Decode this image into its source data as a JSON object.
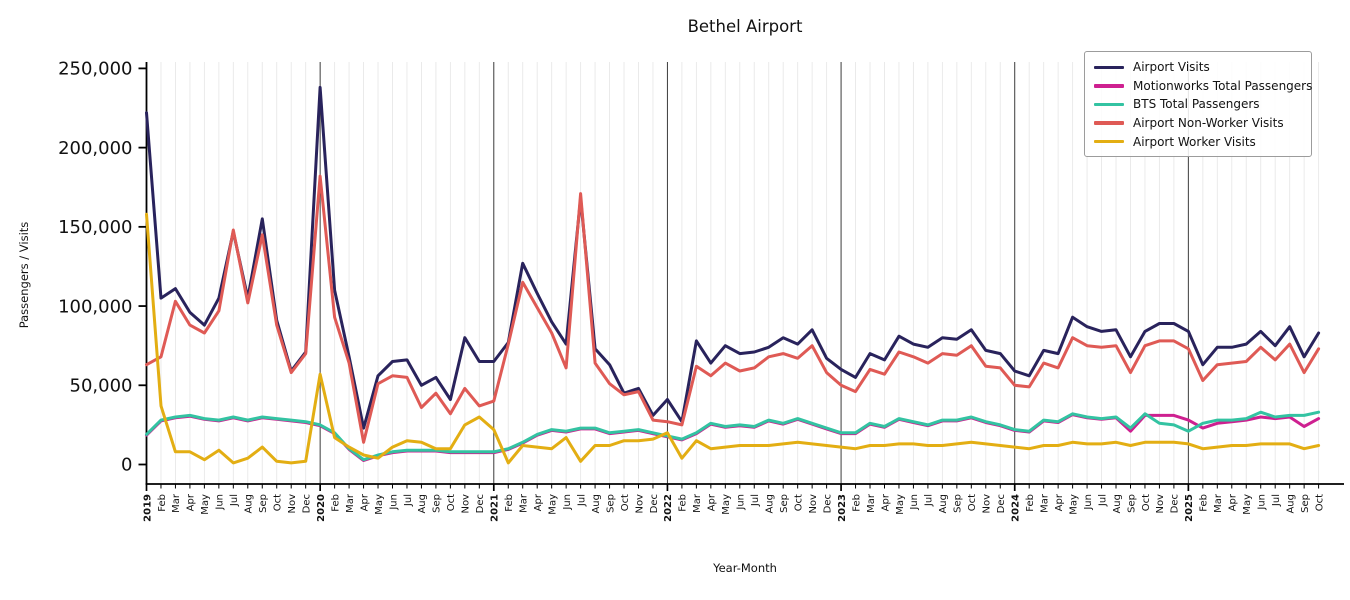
{
  "chart_data": {
    "type": "line",
    "title": "Bethel Airport",
    "xlabel": "Year-Month",
    "ylabel": "Passengers / Visits",
    "ylim": [
      -12000,
      254000
    ],
    "legend_position": "upper right",
    "grid": {
      "month_line": "#e8e8e8",
      "year_line": "#3b3b3b"
    },
    "y_ticks": [
      {
        "value": 0,
        "label": "0"
      },
      {
        "value": 50000,
        "label": "50,000"
      },
      {
        "value": 100000,
        "label": "100,000"
      },
      {
        "value": 150000,
        "label": "150,000"
      },
      {
        "value": 200000,
        "label": "200,000"
      },
      {
        "value": 250000,
        "label": "250,000"
      }
    ],
    "x": [
      "2019-01",
      "2019-02",
      "2019-03",
      "2019-04",
      "2019-05",
      "2019-06",
      "2019-07",
      "2019-08",
      "2019-09",
      "2019-10",
      "2019-11",
      "2019-12",
      "2020-01",
      "2020-02",
      "2020-03",
      "2020-04",
      "2020-05",
      "2020-06",
      "2020-07",
      "2020-08",
      "2020-09",
      "2020-10",
      "2020-11",
      "2020-12",
      "2021-01",
      "2021-02",
      "2021-03",
      "2021-04",
      "2021-05",
      "2021-06",
      "2021-07",
      "2021-08",
      "2021-09",
      "2021-10",
      "2021-11",
      "2021-12",
      "2022-01",
      "2022-02",
      "2022-03",
      "2022-04",
      "2022-05",
      "2022-06",
      "2022-07",
      "2022-08",
      "2022-09",
      "2022-10",
      "2022-11",
      "2022-12",
      "2023-01",
      "2023-02",
      "2023-03",
      "2023-04",
      "2023-05",
      "2023-06",
      "2023-07",
      "2023-08",
      "2023-09",
      "2023-10",
      "2023-11",
      "2023-12",
      "2024-01",
      "2024-02",
      "2024-03",
      "2024-04",
      "2024-05",
      "2024-06",
      "2024-07",
      "2024-08",
      "2024-09",
      "2024-10",
      "2024-11",
      "2024-12",
      "2025-01",
      "2025-02",
      "2025-03",
      "2025-04",
      "2025-05",
      "2025-06",
      "2025-07",
      "2025-08",
      "2025-09",
      "2025-10"
    ],
    "x_tick_labels": [
      "2019",
      "Feb",
      "Mar",
      "Apr",
      "May",
      "Jun",
      "Jul",
      "Aug",
      "Sep",
      "Oct",
      "Nov",
      "Dec",
      "2020",
      "Feb",
      "Mar",
      "Apr",
      "May",
      "Jun",
      "Jul",
      "Aug",
      "Sep",
      "Oct",
      "Nov",
      "Dec",
      "2021",
      "Feb",
      "Mar",
      "Apr",
      "May",
      "Jun",
      "Jul",
      "Aug",
      "Sep",
      "Oct",
      "Nov",
      "Dec",
      "2022",
      "Feb",
      "Mar",
      "Apr",
      "May",
      "Jun",
      "Jul",
      "Aug",
      "Sep",
      "Oct",
      "Nov",
      "Dec",
      "2023",
      "Feb",
      "Mar",
      "Apr",
      "May",
      "Jun",
      "Jul",
      "Aug",
      "Sep",
      "Oct",
      "Nov",
      "Dec",
      "2024",
      "Feb",
      "Mar",
      "Apr",
      "May",
      "Jun",
      "Jul",
      "Aug",
      "Sep",
      "Oct",
      "Nov",
      "Dec",
      "2025",
      "Feb",
      "Mar",
      "Apr",
      "May",
      "Jun",
      "Jul",
      "Aug",
      "Sep",
      "Oct"
    ],
    "series": [
      {
        "name": "Airport Visits",
        "color": "#29235c",
        "values": [
          222000,
          105000,
          111000,
          96000,
          88000,
          105000,
          147000,
          105000,
          155000,
          91000,
          59000,
          71000,
          238000,
          110000,
          68000,
          23000,
          56000,
          65000,
          66000,
          50000,
          55000,
          41000,
          80000,
          65000,
          65000,
          77000,
          127000,
          108000,
          90000,
          76000,
          168000,
          73000,
          63000,
          45000,
          48000,
          31000,
          41000,
          27000,
          78000,
          64000,
          75000,
          70000,
          71000,
          74000,
          80000,
          76000,
          85000,
          67000,
          60000,
          55000,
          70000,
          66000,
          81000,
          76000,
          74000,
          80000,
          79000,
          85000,
          72000,
          70000,
          59000,
          56000,
          72000,
          70000,
          93000,
          87000,
          84000,
          85000,
          68000,
          84000,
          89000,
          89000,
          84000,
          63000,
          74000,
          74000,
          76000,
          84000,
          75000,
          87000,
          68000,
          83000
        ]
      },
      {
        "name": "Motionworks Total Passengers",
        "color": "#ce2090",
        "values": [
          18500,
          27500,
          29500,
          30500,
          28500,
          27500,
          29500,
          27500,
          29500,
          28500,
          27500,
          26500,
          24500,
          19500,
          9500,
          2500,
          5500,
          7500,
          8500,
          8500,
          8500,
          7500,
          7500,
          7500,
          7500,
          9500,
          13500,
          18500,
          21500,
          20500,
          22500,
          22500,
          19500,
          20500,
          21500,
          19500,
          17500,
          15500,
          19500,
          25500,
          23500,
          24500,
          23500,
          27500,
          25500,
          28500,
          25500,
          22500,
          19500,
          19500,
          25500,
          23500,
          28500,
          26500,
          24500,
          27500,
          27500,
          29500,
          26500,
          24500,
          21500,
          20500,
          27500,
          26500,
          31500,
          29500,
          28500,
          29500,
          21000,
          31000,
          31000,
          31000,
          28000,
          23000,
          26000,
          27000,
          28000,
          30000,
          29000,
          30000,
          24000,
          29000
        ]
      },
      {
        "name": "BTS Total Passengers",
        "color": "#33c3a2",
        "values": [
          19000,
          28000,
          30000,
          31000,
          29000,
          28000,
          30000,
          28000,
          30000,
          29000,
          28000,
          27000,
          25000,
          20000,
          10000,
          3000,
          6000,
          8000,
          9000,
          9000,
          9000,
          8000,
          8000,
          8000,
          8000,
          10000,
          14000,
          19000,
          22000,
          21000,
          23000,
          23000,
          20000,
          21000,
          22000,
          20000,
          18000,
          16000,
          20000,
          26000,
          24000,
          25000,
          24000,
          28000,
          26000,
          29000,
          26000,
          23000,
          20000,
          20000,
          26000,
          24000,
          29000,
          27000,
          25000,
          28000,
          28000,
          30000,
          27000,
          25000,
          22000,
          21000,
          28000,
          27000,
          32000,
          30000,
          29000,
          30000,
          23000,
          32000,
          26000,
          25000,
          21000,
          26000,
          28000,
          28000,
          29000,
          33000,
          30000,
          31000,
          31000,
          33000
        ]
      },
      {
        "name": "Airport Non-Worker Visits",
        "color": "#df5a55",
        "values": [
          63000,
          68000,
          103000,
          88000,
          83000,
          97000,
          148000,
          102000,
          145000,
          88000,
          58000,
          70000,
          182000,
          93000,
          64000,
          14000,
          51000,
          56000,
          55000,
          36000,
          45000,
          32000,
          48000,
          37000,
          40000,
          76000,
          115000,
          99000,
          83000,
          61000,
          171000,
          64000,
          51000,
          44000,
          46000,
          28000,
          27000,
          25000,
          62000,
          56000,
          64000,
          59000,
          61000,
          68000,
          70000,
          67000,
          75000,
          58000,
          50000,
          46000,
          60000,
          57000,
          71000,
          68000,
          64000,
          70000,
          69000,
          75000,
          62000,
          61000,
          50000,
          49000,
          64000,
          61000,
          80000,
          75000,
          74000,
          75000,
          58000,
          75000,
          78000,
          78000,
          73000,
          53000,
          63000,
          64000,
          65000,
          74000,
          66000,
          76000,
          58000,
          73000
        ]
      },
      {
        "name": "Airport Worker Visits",
        "color": "#e3ae13",
        "values": [
          158000,
          37000,
          8000,
          8000,
          3000,
          9000,
          1000,
          4000,
          11000,
          2000,
          1000,
          2000,
          57000,
          17000,
          11000,
          6000,
          4000,
          11000,
          15000,
          14000,
          10000,
          10000,
          25000,
          30000,
          22000,
          1000,
          12000,
          11000,
          10000,
          17000,
          2000,
          12000,
          12000,
          15000,
          15000,
          16000,
          20000,
          4000,
          15000,
          10000,
          11000,
          12000,
          12000,
          12000,
          13000,
          14000,
          13000,
          12000,
          11000,
          10000,
          12000,
          12000,
          13000,
          13000,
          12000,
          12000,
          13000,
          14000,
          13000,
          12000,
          11000,
          10000,
          12000,
          12000,
          14000,
          13000,
          13000,
          14000,
          12000,
          14000,
          14000,
          14000,
          13000,
          10000,
          11000,
          12000,
          12000,
          13000,
          13000,
          13000,
          10000,
          12000
        ]
      }
    ]
  }
}
